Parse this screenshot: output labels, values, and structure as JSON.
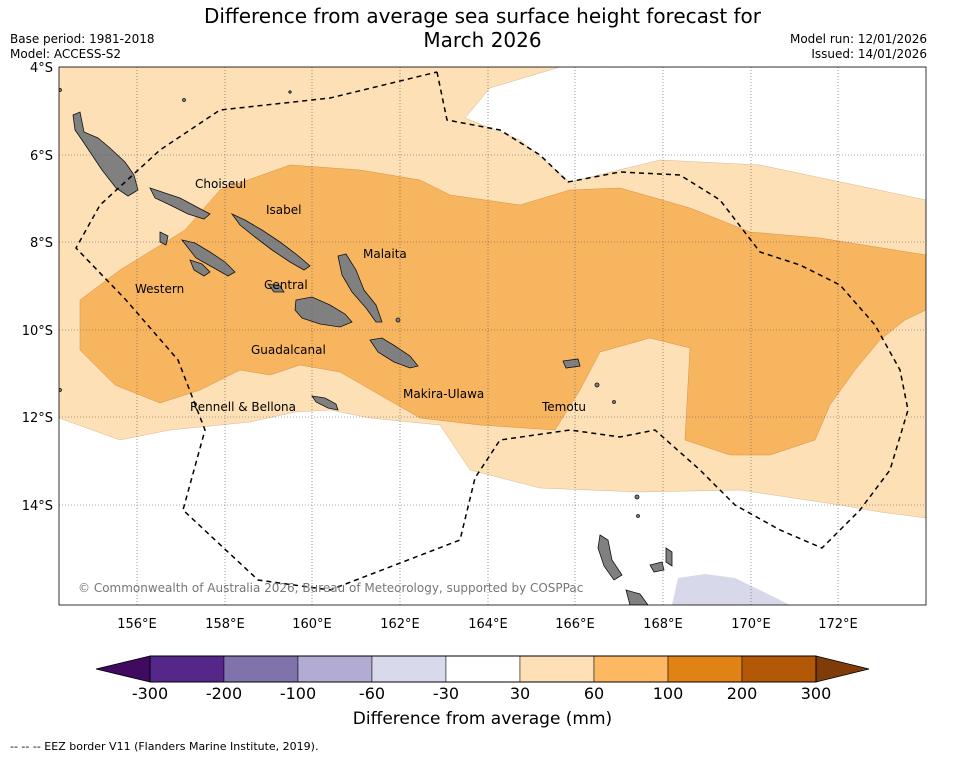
{
  "header": {
    "title_line1": "Difference from average sea surface height forecast for",
    "title_line2": "March 2026",
    "base_period": "Base period: 1981-2018",
    "model": "Model: ACCESS-S2",
    "model_run": "Model run: 12/01/2026",
    "issued": "Issued: 14/01/2026"
  },
  "map": {
    "lat_labels": [
      "4°S",
      "6°S",
      "8°S",
      "10°S",
      "12°S",
      "14°S"
    ],
    "lon_labels": [
      "156°E",
      "158°E",
      "160°E",
      "162°E",
      "164°E",
      "166°E",
      "168°E",
      "170°E",
      "172°E"
    ],
    "provinces": [
      "Choiseul",
      "Isabel",
      "Malaita",
      "Western",
      "Central",
      "Guadalcanal",
      "Makira-Ulawa",
      "Rennell & Bellona",
      "Temotu"
    ],
    "copyright": "© Commonwealth of Australia 2026, Bureau of Meteorology, supported by COSPPac",
    "colors": {
      "land": "#808080",
      "c30_60": "#fde0b6",
      "c60_100": "#f8b560",
      "cneg60_neg30": "#d7d8ea"
    }
  },
  "colorbar": {
    "ticks": [
      "-300",
      "-200",
      "-100",
      "-60",
      "-30",
      "30",
      "60",
      "100",
      "200",
      "300"
    ],
    "colors": [
      "#3f0a5f",
      "#542788",
      "#8073ac",
      "#b2abd2",
      "#d8daeb",
      "#ffffff",
      "#fee0b6",
      "#fdb863",
      "#e08214",
      "#b35806",
      "#7f3b08"
    ],
    "title": "Difference from average (mm)"
  },
  "footnote": "--  --  -- EEZ border V11 (Flanders Marine Institute, 2019)."
}
